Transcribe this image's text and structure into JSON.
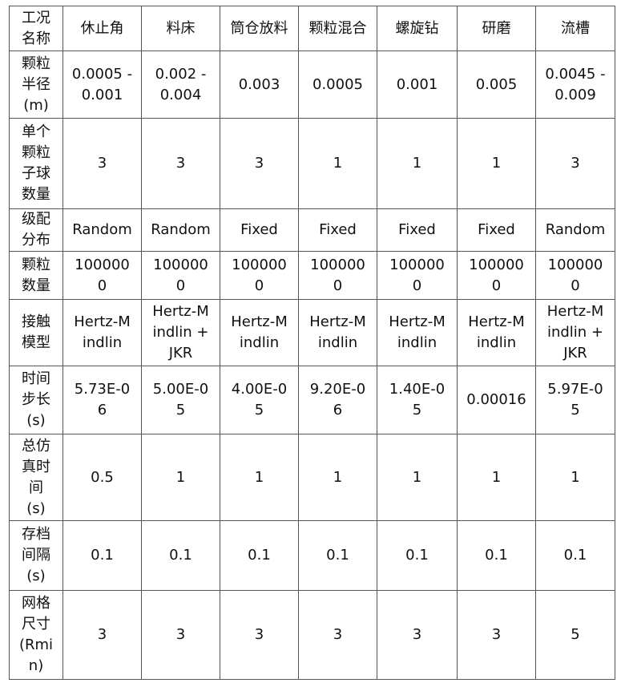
{
  "table": {
    "header": {
      "label": "工况\n名称",
      "cells": [
        "休止角",
        "料床",
        "筒仓放料",
        "颗粒混合",
        "螺旋钻",
        "研磨",
        "流槽"
      ]
    },
    "rows": [
      {
        "label": "颗粒\n半径\n(m)",
        "cells": [
          "0.0005 -\n0.001",
          "0.002 -\n0.004",
          "0.003",
          "0.0005",
          "0.001",
          "0.005",
          "0.0045 -\n0.009"
        ]
      },
      {
        "label": "单个\n颗粒\n子球\n数量",
        "cells": [
          "3",
          "3",
          "3",
          "1",
          "1",
          "1",
          "3"
        ]
      },
      {
        "label": "级配\n分布",
        "cells": [
          "Random",
          "Random",
          "Fixed",
          "Fixed",
          "Fixed",
          "Fixed",
          "Random"
        ]
      },
      {
        "label": "颗粒\n数量",
        "cells": [
          "100000\n0",
          "100000\n0",
          "100000\n0",
          "100000\n0",
          "100000\n0",
          "100000\n0",
          "100000\n0"
        ]
      },
      {
        "label": "接触\n模型",
        "cells": [
          "Hertz-M\nindlin",
          "Hertz-M\nindlin +\nJKR",
          "Hertz-M\nindlin",
          "Hertz-M\nindlin",
          "Hertz-M\nindlin",
          "Hertz-M\nindlin",
          "Hertz-M\nindlin +\nJKR"
        ]
      },
      {
        "label": "时间\n步长\n(s)",
        "cells": [
          "5.73E-0\n6",
          "5.00E-0\n5",
          "4.00E-0\n5",
          "9.20E-0\n6",
          "1.40E-0\n5",
          "0.00016",
          "5.97E-0\n5"
        ]
      },
      {
        "label": "总仿\n真时\n间\n(s)",
        "cells": [
          "0.5",
          "1",
          "1",
          "1",
          "1",
          "1",
          "1"
        ]
      },
      {
        "label": "存档\n间隔\n(s)",
        "cells": [
          "0.1",
          "0.1",
          "0.1",
          "0.1",
          "0.1",
          "0.1",
          "0.1"
        ]
      },
      {
        "label": "网格\n尺寸\n(Rmi\nn)",
        "cells": [
          "3",
          "3",
          "3",
          "3",
          "3",
          "3",
          "5"
        ]
      }
    ]
  }
}
